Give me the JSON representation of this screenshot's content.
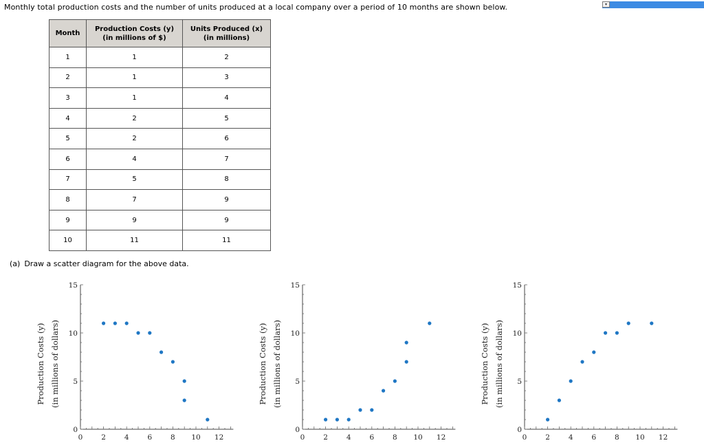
{
  "question": {
    "intro": "Monthly total production costs and the number of units produced at a local company over a period of 10 months are shown below.",
    "part_a_label": "(a)",
    "part_a_text": "Draw a scatter diagram for the above data."
  },
  "table": {
    "headers": [
      "Month",
      "Production Costs (y)",
      "(in millions of $)",
      "Units Produced (x)",
      "(in millions)"
    ],
    "rows": [
      [
        "1",
        "1",
        "2"
      ],
      [
        "2",
        "1",
        "3"
      ],
      [
        "3",
        "1",
        "4"
      ],
      [
        "4",
        "2",
        "5"
      ],
      [
        "5",
        "2",
        "6"
      ],
      [
        "6",
        "4",
        "7"
      ],
      [
        "7",
        "5",
        "8"
      ],
      [
        "8",
        "7",
        "9"
      ],
      [
        "9",
        "9",
        "9"
      ],
      [
        "10",
        "11",
        "11"
      ]
    ]
  },
  "colors": {
    "point": "#1f77c4",
    "accent_bar": "#3d8be3"
  },
  "chart_data": [
    {
      "type": "scatter",
      "ylabel_line1": "Production Costs (y)",
      "ylabel_line2": "(in millions of dollars)",
      "xlim": [
        0,
        13
      ],
      "ylim": [
        0,
        15
      ],
      "xticks": [
        0,
        2,
        4,
        6,
        8,
        10,
        12
      ],
      "yticks": [
        0,
        5,
        10,
        15
      ],
      "points": [
        [
          2,
          11
        ],
        [
          3,
          11
        ],
        [
          4,
          11
        ],
        [
          5,
          10
        ],
        [
          6,
          10
        ],
        [
          7,
          8
        ],
        [
          8,
          7
        ],
        [
          9,
          5
        ],
        [
          9,
          3
        ],
        [
          11,
          1
        ]
      ]
    },
    {
      "type": "scatter",
      "ylabel_line1": "Production Costs (y)",
      "ylabel_line2": "(in millions of dollars)",
      "xlim": [
        0,
        13
      ],
      "ylim": [
        0,
        15
      ],
      "xticks": [
        0,
        2,
        4,
        6,
        8,
        10,
        12
      ],
      "yticks": [
        0,
        5,
        10,
        15
      ],
      "points": [
        [
          2,
          1
        ],
        [
          3,
          1
        ],
        [
          4,
          1
        ],
        [
          5,
          2
        ],
        [
          6,
          2
        ],
        [
          7,
          4
        ],
        [
          8,
          5
        ],
        [
          9,
          7
        ],
        [
          9,
          9
        ],
        [
          11,
          11
        ]
      ]
    },
    {
      "type": "scatter",
      "ylabel_line1": "Production Costs (y)",
      "ylabel_line2": "(in millions of dollars)",
      "xlim": [
        0,
        13
      ],
      "ylim": [
        0,
        15
      ],
      "xticks": [
        0,
        2,
        4,
        6,
        8,
        10,
        12
      ],
      "yticks": [
        0,
        5,
        10,
        15
      ],
      "points": [
        [
          2,
          1
        ],
        [
          3,
          3
        ],
        [
          4,
          5
        ],
        [
          5,
          7
        ],
        [
          6,
          8
        ],
        [
          7,
          10
        ],
        [
          8,
          10
        ],
        [
          9,
          11
        ],
        [
          11,
          11
        ]
      ]
    }
  ]
}
